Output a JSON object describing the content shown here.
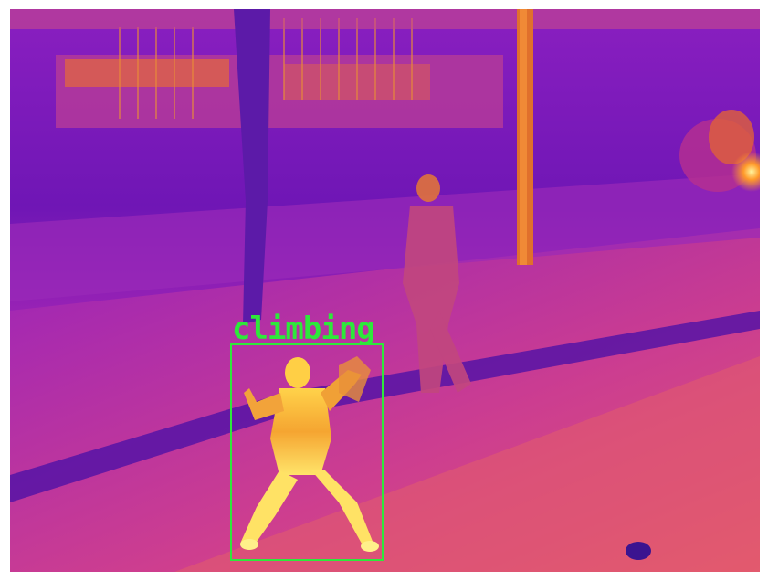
{
  "image": {
    "kind": "thermal-camera-frame",
    "palette": "ironbow",
    "colors": {
      "background_purple": "#7a17b8",
      "warm_orange": "#f0701f",
      "hot_yellow": "#fff27a",
      "box_green": "#2ee83b"
    }
  },
  "detections": [
    {
      "label": "climbing",
      "color": "#2ee83b"
    }
  ]
}
